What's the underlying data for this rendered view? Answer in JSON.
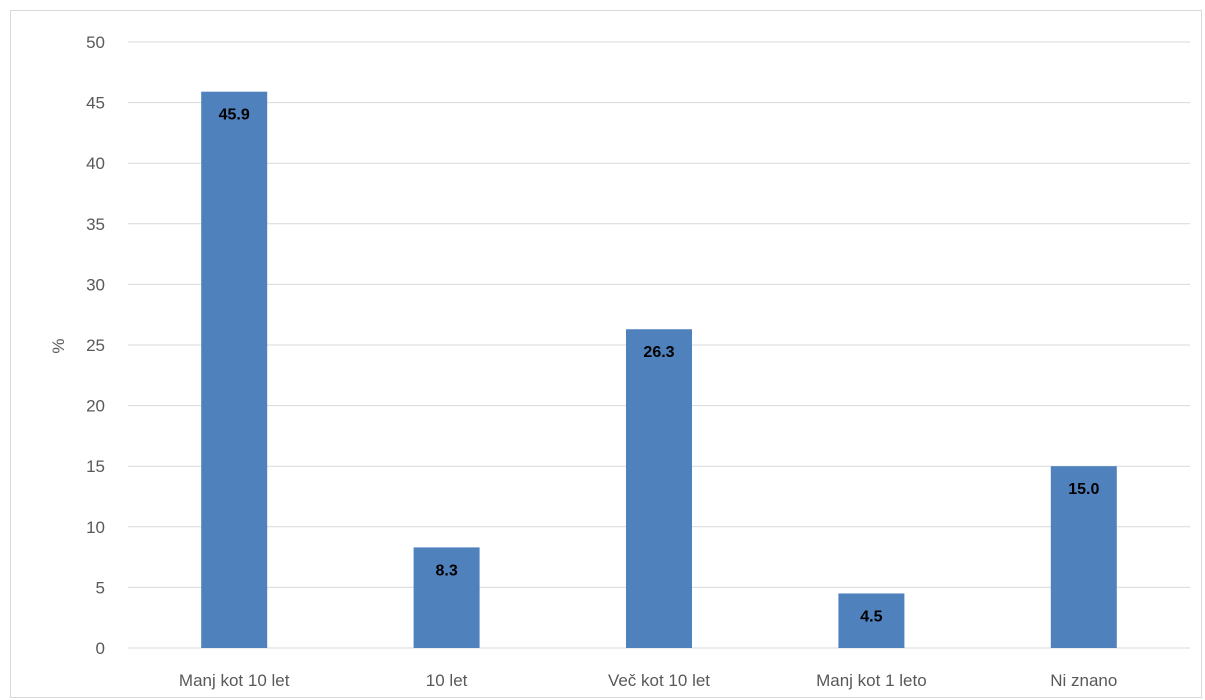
{
  "chart_data": {
    "type": "bar",
    "categories": [
      "Manj kot 10 let",
      "10 let",
      "Več kot 10 let",
      "Manj kot 1 leto",
      "Ni znano"
    ],
    "values": [
      45.9,
      8.3,
      26.3,
      4.5,
      15.0
    ],
    "data_labels": [
      "45.9",
      "8.3",
      "26.3",
      "4.5",
      "15.0"
    ],
    "title": "",
    "xlabel": "",
    "ylabel": "%",
    "ylim": [
      0,
      50
    ],
    "yticks": [
      0,
      5,
      10,
      15,
      20,
      25,
      30,
      35,
      40,
      45,
      50
    ],
    "grid": true,
    "legend": "none",
    "bar_color": "#4f81bd"
  }
}
